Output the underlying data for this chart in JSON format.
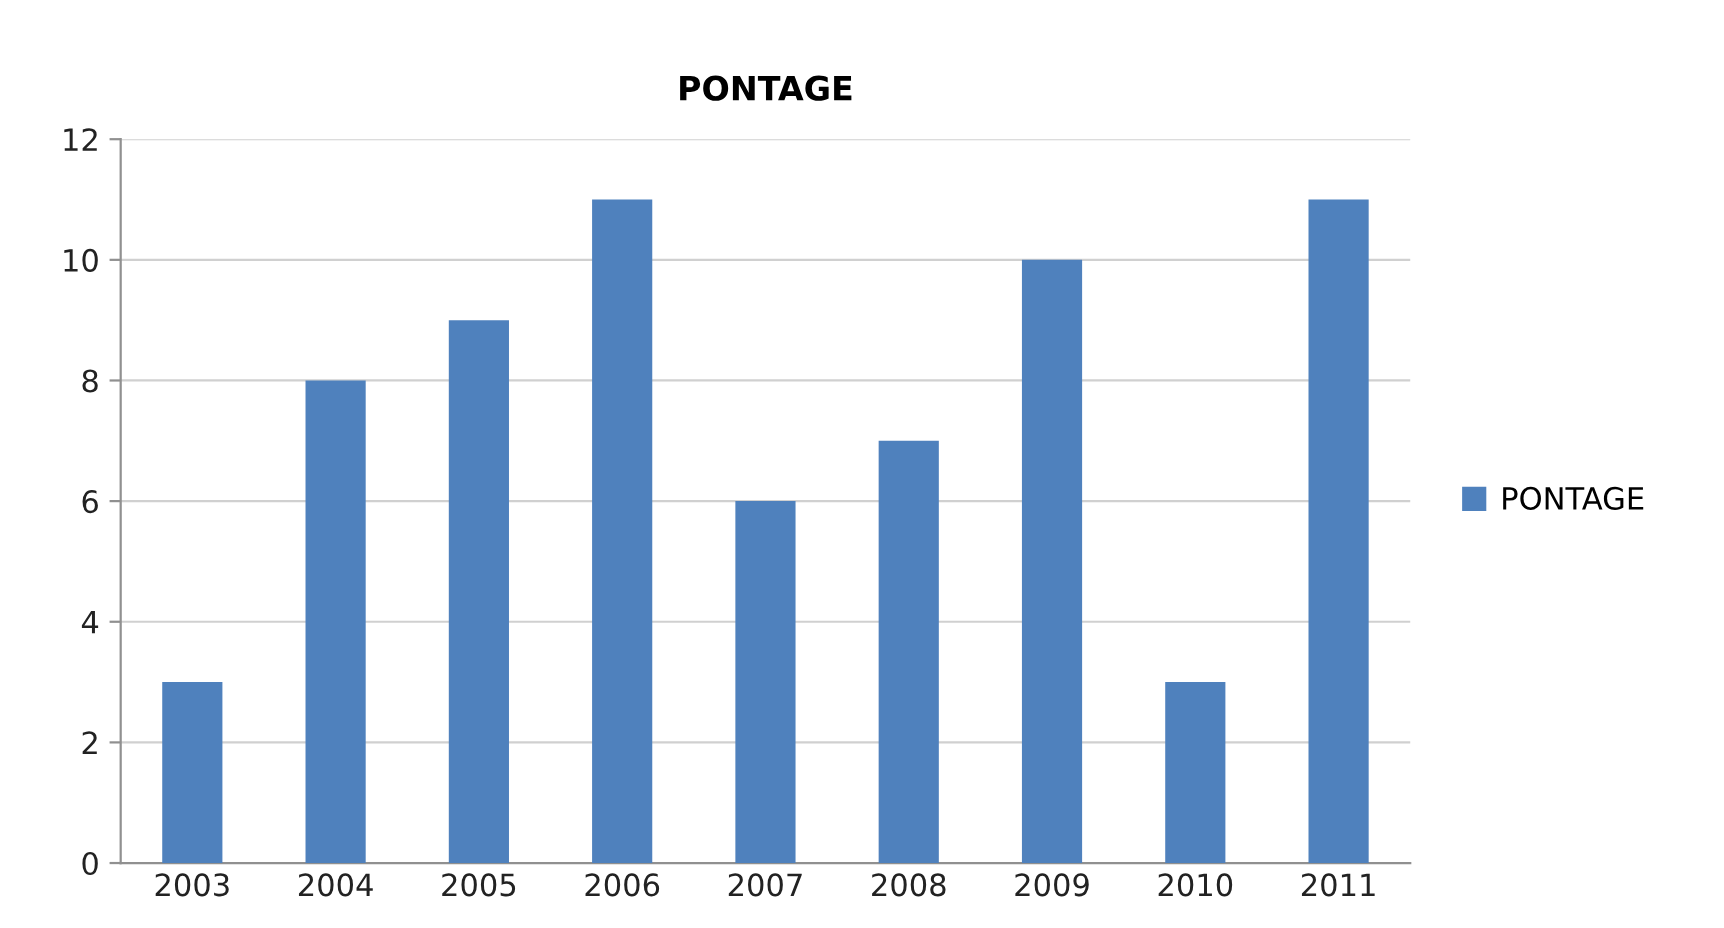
{
  "chart_data": {
    "type": "bar",
    "title": "PONTAGE",
    "categories": [
      "2003",
      "2004",
      "2005",
      "2006",
      "2007",
      "2008",
      "2009",
      "2010",
      "2011"
    ],
    "series": [
      {
        "name": "PONTAGE",
        "color": "#4f81bd",
        "values": [
          3,
          8,
          9,
          11,
          6,
          7,
          10,
          3,
          11
        ]
      }
    ],
    "ylim": [
      0,
      12
    ],
    "yticks": [
      0,
      2,
      4,
      6,
      8,
      10,
      12
    ],
    "grid": "y",
    "legend": "right"
  }
}
